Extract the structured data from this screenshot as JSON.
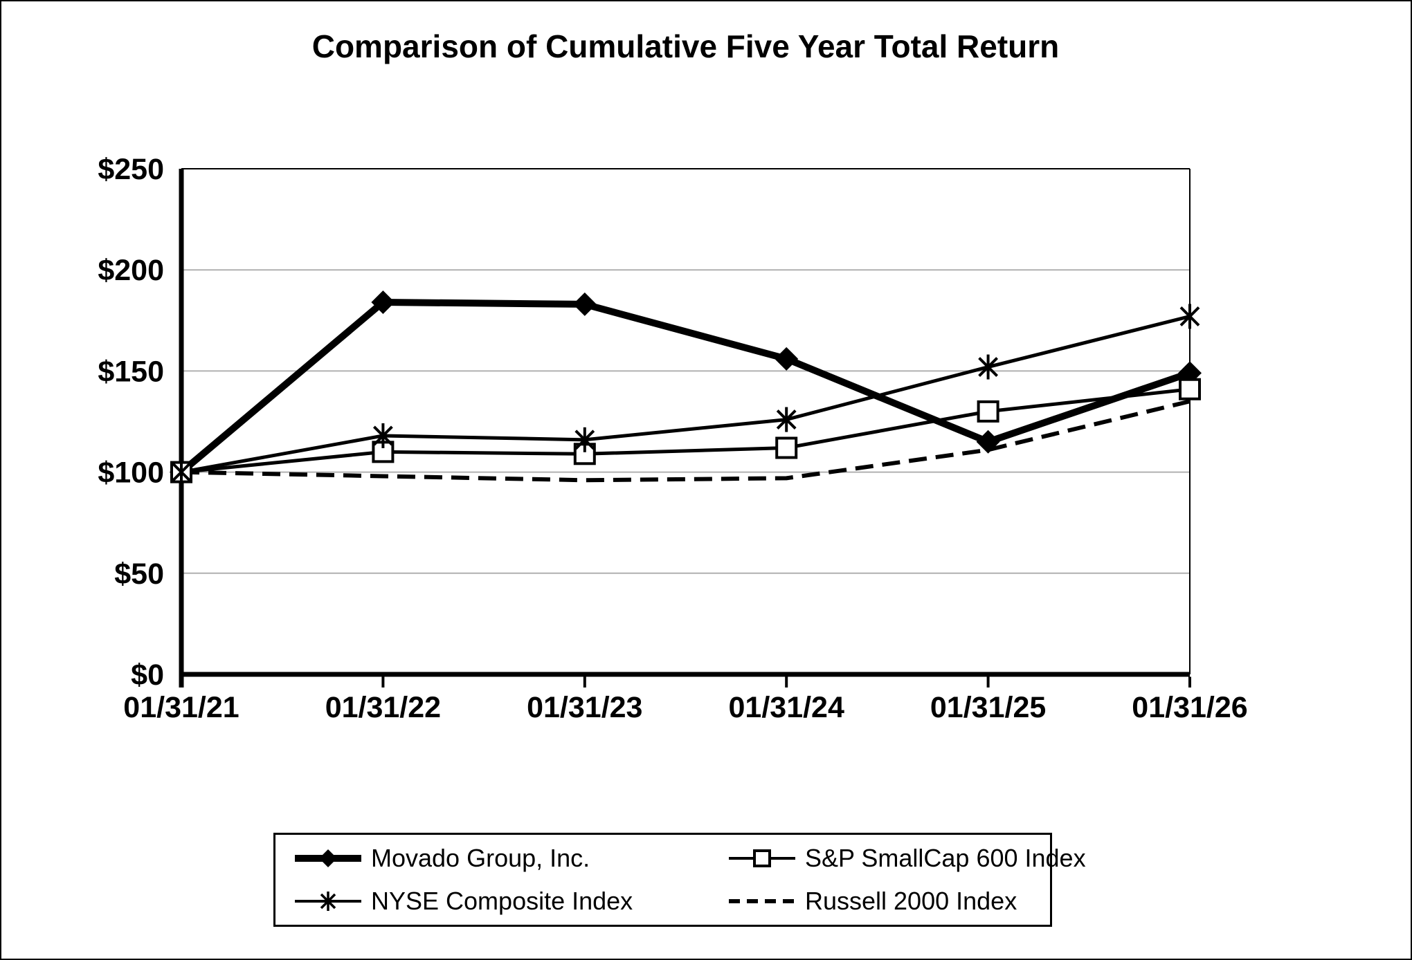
{
  "title": "Comparison of Cumulative Five Year Total Return",
  "colors": {
    "series_color": "#000000",
    "gridline_color": "#b0b0b0",
    "background": "#ffffff",
    "border": "#000000"
  },
  "chart_data": {
    "type": "line",
    "title": "Comparison of Cumulative Five Year Total Return",
    "categories": [
      "01/31/21",
      "01/31/22",
      "01/31/23",
      "01/31/24",
      "01/31/25",
      "01/31/26"
    ],
    "series": [
      {
        "name": "Movado Group, Inc.",
        "values": [
          100,
          184,
          183,
          156,
          115,
          149
        ],
        "marker": "diamond",
        "line_width": 10,
        "dash": null
      },
      {
        "name": "S&P SmallCap 600 Index",
        "values": [
          100,
          110,
          109,
          112,
          130,
          141
        ],
        "marker": "square-open",
        "line_width": 5,
        "dash": null
      },
      {
        "name": "NYSE Composite Index",
        "values": [
          100,
          118,
          116,
          126,
          152,
          177
        ],
        "marker": "asterisk",
        "line_width": 5,
        "dash": null
      },
      {
        "name": "Russell 2000 Index",
        "values": [
          100,
          98,
          96,
          97,
          111,
          135
        ],
        "marker": "none",
        "line_width": 6,
        "dash": "26 13"
      }
    ],
    "y_ticks": [
      {
        "label": "$250",
        "value": 250
      },
      {
        "label": "$200",
        "value": 200
      },
      {
        "label": "$150",
        "value": 150
      },
      {
        "label": "$100",
        "value": 100
      },
      {
        "label": "$50",
        "value": 50
      },
      {
        "label": "$0",
        "value": 0
      }
    ],
    "ylim": [
      0,
      250
    ],
    "xlabel": "",
    "ylabel": "",
    "grid": "horizontal",
    "legend_position": "bottom"
  }
}
